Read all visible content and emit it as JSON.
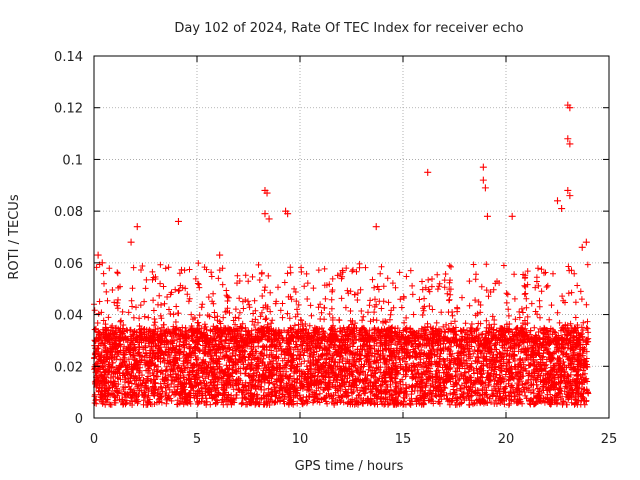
{
  "chart_data": {
    "type": "scatter",
    "title": "Day 102 of 2024, Rate Of TEC Index for receiver echo",
    "xlabel": "GPS time / hours",
    "ylabel": "ROTI / TECUs",
    "xlim": [
      0,
      25
    ],
    "ylim": [
      0,
      0.14
    ],
    "xticks": [
      0,
      5,
      10,
      15,
      20,
      25
    ],
    "xtick_labels": [
      "0",
      "5",
      "10",
      "15",
      "20",
      "25"
    ],
    "yticks": [
      0,
      0.02,
      0.04,
      0.06,
      0.08,
      0.1,
      0.12,
      0.14
    ],
    "ytick_labels": [
      "0",
      "0.02",
      "0.04",
      "0.06",
      "0.08",
      "0.1",
      "0.12",
      "0.14"
    ],
    "grid": true,
    "marker": "+",
    "color": "#ff0000",
    "series": [
      {
        "name": "ROTI",
        "x_range": [
          0,
          24
        ],
        "typical_range": [
          0.005,
          0.035
        ],
        "outliers": [
          {
            "x": 0.2,
            "y": 0.063
          },
          {
            "x": 0.4,
            "y": 0.06
          },
          {
            "x": 1.8,
            "y": 0.068
          },
          {
            "x": 2.1,
            "y": 0.074
          },
          {
            "x": 4.1,
            "y": 0.076
          },
          {
            "x": 6.1,
            "y": 0.063
          },
          {
            "x": 8.3,
            "y": 0.088
          },
          {
            "x": 8.4,
            "y": 0.087
          },
          {
            "x": 8.3,
            "y": 0.079
          },
          {
            "x": 8.5,
            "y": 0.077
          },
          {
            "x": 9.3,
            "y": 0.08
          },
          {
            "x": 9.4,
            "y": 0.079
          },
          {
            "x": 13.7,
            "y": 0.074
          },
          {
            "x": 16.2,
            "y": 0.095
          },
          {
            "x": 18.9,
            "y": 0.097
          },
          {
            "x": 18.9,
            "y": 0.092
          },
          {
            "x": 19.0,
            "y": 0.089
          },
          {
            "x": 19.1,
            "y": 0.078
          },
          {
            "x": 20.3,
            "y": 0.078
          },
          {
            "x": 22.5,
            "y": 0.084
          },
          {
            "x": 22.7,
            "y": 0.081
          },
          {
            "x": 23.0,
            "y": 0.121
          },
          {
            "x": 23.1,
            "y": 0.12
          },
          {
            "x": 23.0,
            "y": 0.108
          },
          {
            "x": 23.1,
            "y": 0.106
          },
          {
            "x": 23.0,
            "y": 0.088
          },
          {
            "x": 23.1,
            "y": 0.086
          },
          {
            "x": 23.9,
            "y": 0.068
          },
          {
            "x": 23.7,
            "y": 0.066
          }
        ]
      }
    ]
  }
}
